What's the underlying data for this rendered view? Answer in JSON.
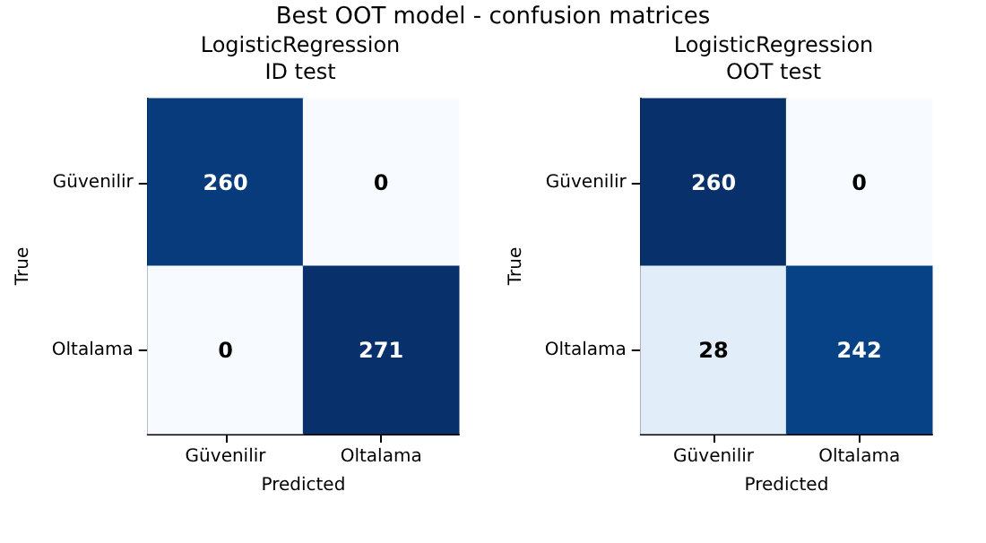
{
  "chart_data": [
    {
      "type": "heatmap",
      "title": "LogisticRegression",
      "subtitle": "ID test",
      "annotations": [
        "Best OOT model - confusion matrices"
      ],
      "xlabel": "Predicted",
      "ylabel": "True",
      "categories": [
        "Güvenilir",
        "Oltalama"
      ],
      "y_categories": [
        "Güvenilir",
        "Oltalama"
      ],
      "cells": [
        [
          260,
          0
        ],
        [
          0,
          271
        ]
      ],
      "data_labels": true,
      "grid": false
    },
    {
      "type": "heatmap",
      "title": "LogisticRegression",
      "subtitle": "OOT test",
      "xlabel": "Predicted",
      "ylabel": "True",
      "categories": [
        "Güvenilir",
        "Oltalama"
      ],
      "y_categories": [
        "Güvenilir",
        "Oltalama"
      ],
      "cells": [
        [
          260,
          0
        ],
        [
          28,
          242
        ]
      ],
      "data_labels": true,
      "grid": false
    }
  ]
}
